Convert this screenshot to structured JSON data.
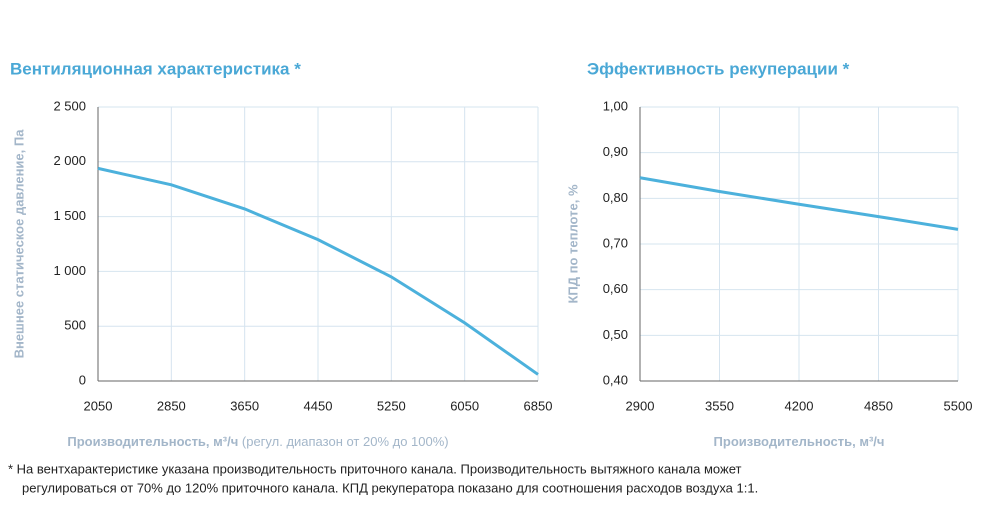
{
  "chart_data": [
    {
      "type": "line",
      "title": "Вентиляционная характеристика *",
      "x_label": "Производительность, м³/ч",
      "x_label_note": "(регул. диапазон от 20% до 100%)",
      "y_label": "Внешнее статическое давление, Па",
      "x": [
        2050,
        2850,
        3650,
        4450,
        5250,
        6050,
        6850
      ],
      "series": [
        {
          "name": "Вентиляционная характеристика",
          "color": "#4cb1dc",
          "values": [
            1940,
            1790,
            1570,
            1290,
            950,
            530,
            60
          ]
        }
      ],
      "xlim": [
        2050,
        6850
      ],
      "xticks": [
        2050,
        2850,
        3650,
        4450,
        5250,
        6050,
        6850
      ],
      "ylim": [
        0,
        2500
      ],
      "yticks": [
        0,
        500,
        {
          "value": 1000,
          "label": "1 000"
        },
        {
          "value": 1500,
          "label": "1 500"
        },
        {
          "value": 2000,
          "label": "2 000"
        },
        {
          "value": 2500,
          "label": "2 500"
        }
      ],
      "grid": true
    },
    {
      "type": "line",
      "title": "Эффективность рекуперации *",
      "x_label": "Производительность, м³/ч",
      "y_label": "КПД по теплоте, %",
      "x": [
        2900,
        3550,
        4200,
        4850,
        5500
      ],
      "series": [
        {
          "name": "Эффективность рекуперации",
          "color": "#4cb1dc",
          "values": [
            0.845,
            0.815,
            0.787,
            0.76,
            0.732
          ]
        }
      ],
      "xlim": [
        2900,
        5500
      ],
      "xticks": [
        2900,
        3550,
        4200,
        4850,
        5500
      ],
      "ylim": [
        0.4,
        1.0
      ],
      "yticks": [
        {
          "value": 0.4,
          "label": "0,40"
        },
        {
          "value": 0.5,
          "label": "0,50"
        },
        {
          "value": 0.6,
          "label": "0,60"
        },
        {
          "value": 0.7,
          "label": "0,70"
        },
        {
          "value": 0.8,
          "label": "0,80"
        },
        {
          "value": 0.9,
          "label": "0,90"
        },
        {
          "value": 1.0,
          "label": "1,00"
        }
      ],
      "grid": true
    }
  ],
  "footnote": [
    "* На вентхарактеристике указана производительность приточного канала. Производительность вытяжного канала может",
    "регулироваться от 70% до 120% приточного канала. КПД рекуператора показано для соотношения расходов воздуха 1:1."
  ]
}
